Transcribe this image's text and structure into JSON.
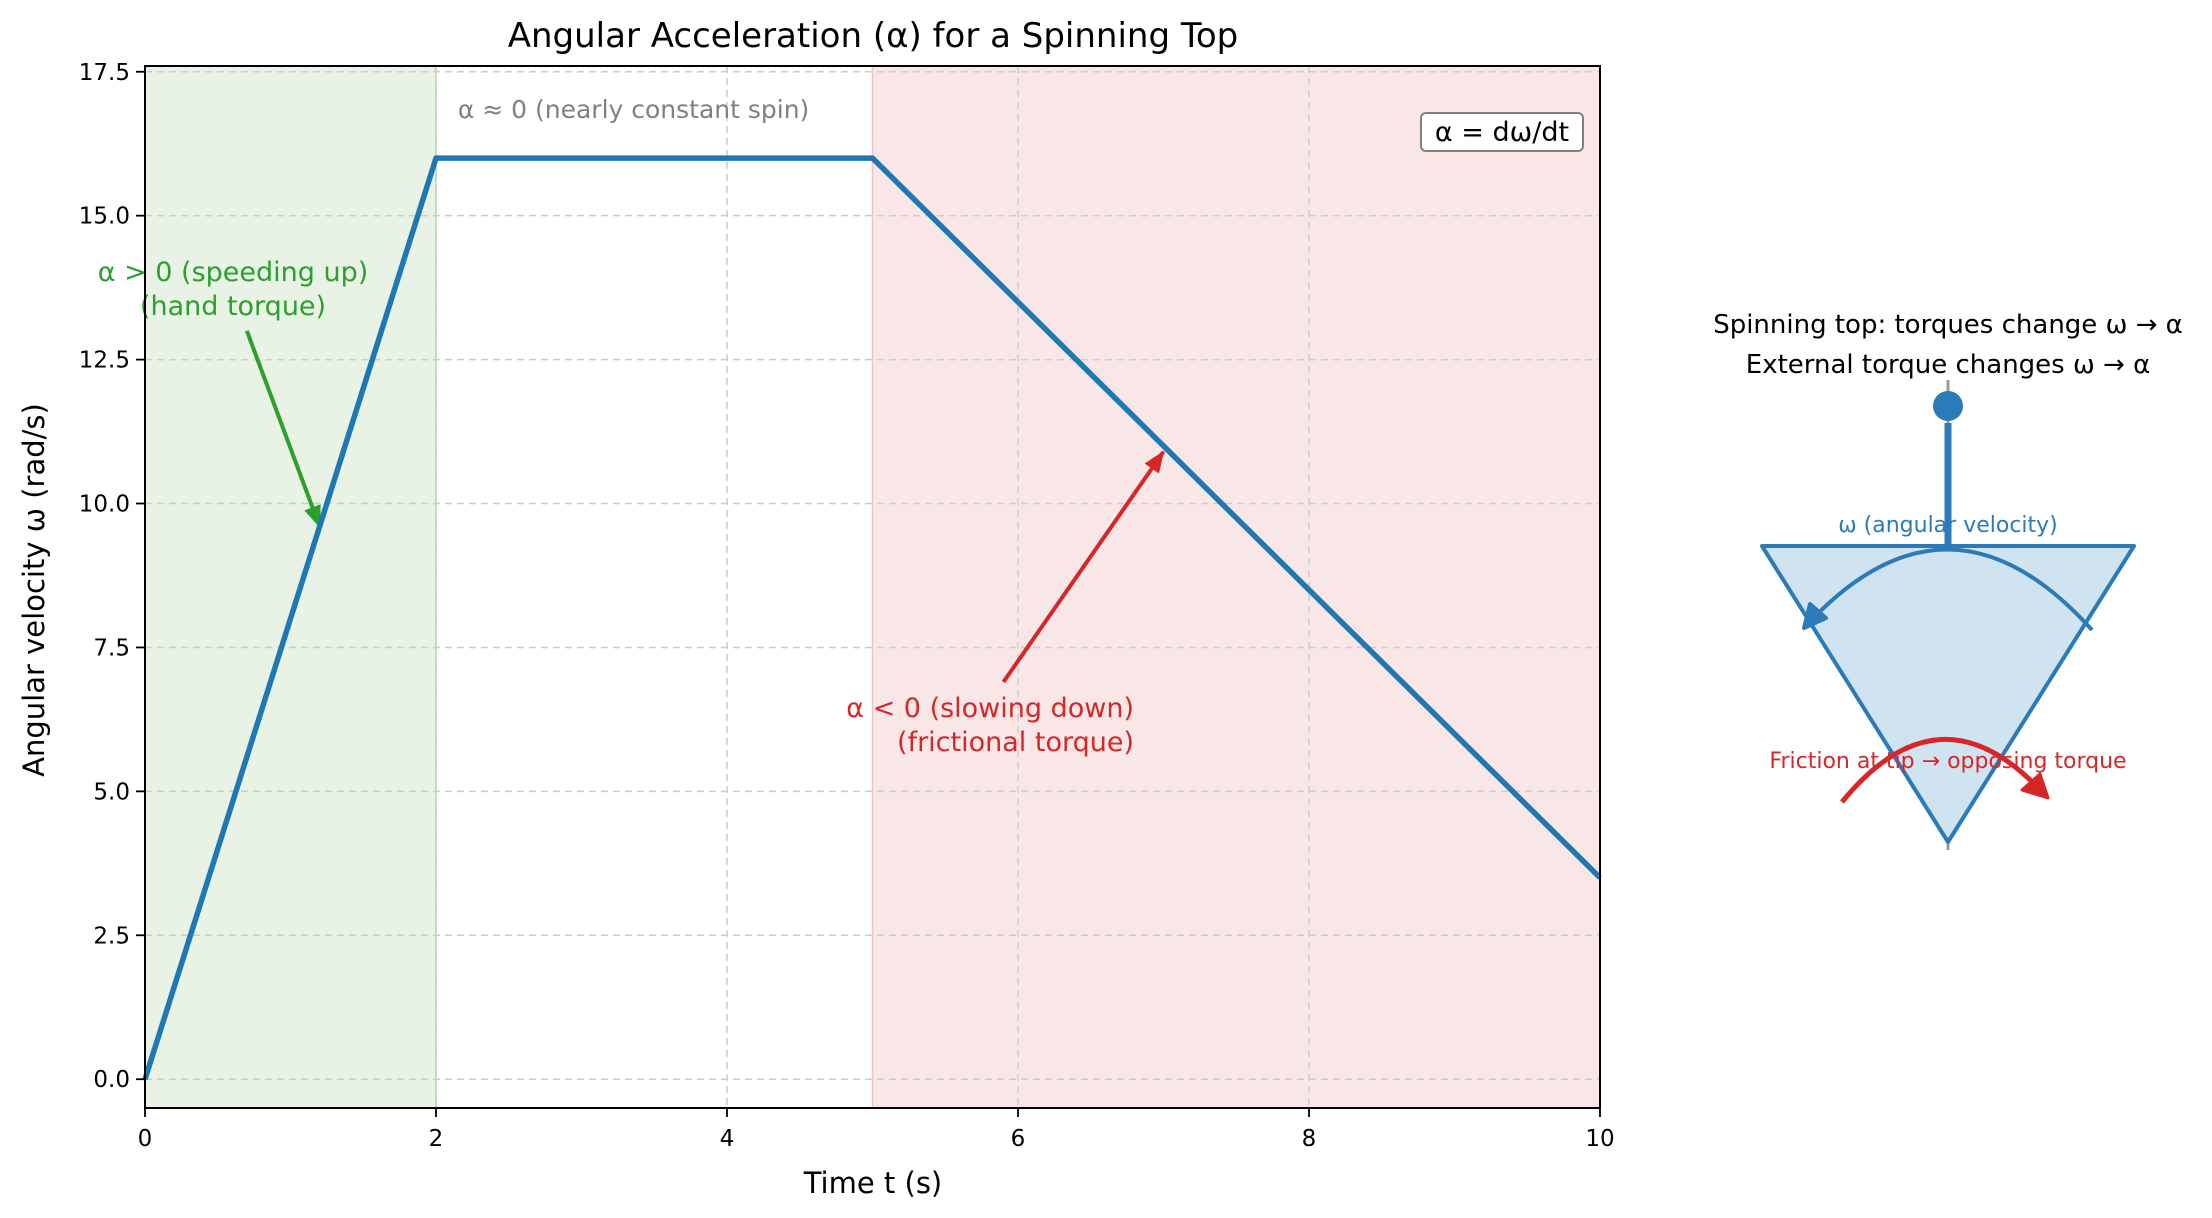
{
  "colors": {
    "line": "#1f77b4",
    "speedup": "#2ca02c",
    "slowdown": "#d62728",
    "grid": "#cccccc",
    "region_green": "#e8f3e6",
    "region_red": "#f9e7e8",
    "muted_text": "#808080",
    "top_fill": "#cfe3f1"
  },
  "chart_data": {
    "type": "line",
    "title": "Angular Acceleration (α) for a Spinning Top",
    "xlabel": "Time t (s)",
    "ylabel": "Angular velocity ω (rad/s)",
    "xlim": [
      0,
      10
    ],
    "ylim": [
      -0.5,
      17.6
    ],
    "xticks": [
      0,
      2,
      4,
      6,
      8,
      10
    ],
    "yticks": [
      0.0,
      2.5,
      5.0,
      7.5,
      10.0,
      12.5,
      15.0,
      17.5
    ],
    "grid": true,
    "series": [
      {
        "x": [
          0,
          2,
          5,
          10
        ],
        "y": [
          0,
          16,
          16,
          3.5
        ]
      }
    ],
    "regions": [
      {
        "x0": 0,
        "x1": 2,
        "color": "green"
      },
      {
        "x0": 5,
        "x1": 10,
        "color": "red"
      }
    ],
    "annotations": [
      {
        "id": "speedup",
        "lines": [
          "α > 0 (speeding up)",
          "(hand torque)"
        ],
        "text_x": 0.6,
        "text_y": 13.5,
        "arrow_to": [
          1.2,
          9.6
        ]
      },
      {
        "id": "constant",
        "lines": [
          "α ≈ 0 (nearly constant spin)"
        ],
        "text_x": 2.15,
        "text_y": 16.7
      },
      {
        "id": "slowdown",
        "lines": [
          "α < 0 (slowing down)",
          "(frictional torque)"
        ],
        "text_x": 6.8,
        "text_y": 5.9,
        "arrow_to": [
          7.0,
          10.9
        ]
      },
      {
        "id": "formula",
        "lines": [
          "α = dω/dt"
        ]
      }
    ]
  },
  "diagram": {
    "title_line1": "Spinning top: torques change ω → α",
    "title_line2": "External torque changes ω → α",
    "omega_label": "ω (angular velocity)",
    "friction_label": "Friction at tip → opposing torque"
  }
}
